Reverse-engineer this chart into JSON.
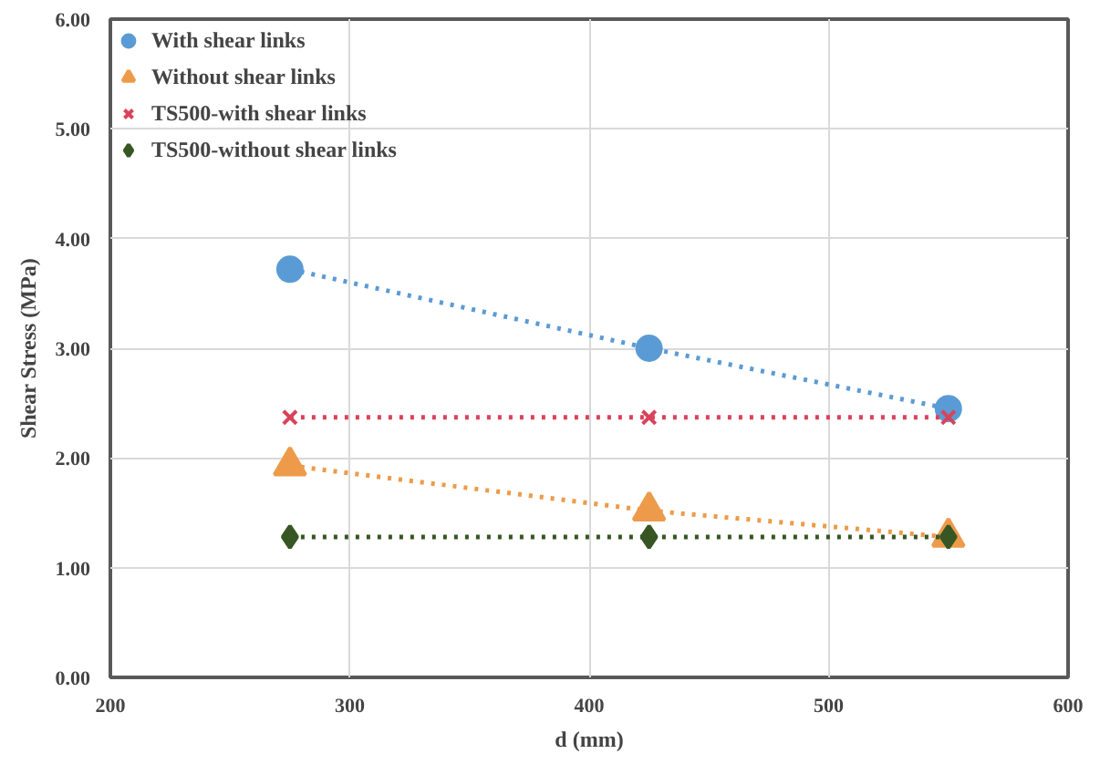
{
  "chart_data": {
    "type": "line",
    "xlabel": "d (mm)",
    "ylabel": "Shear Stress (MPa)",
    "x": [
      275,
      425,
      550
    ],
    "series": [
      {
        "name": "With shear links",
        "color": "#5b9bd5",
        "marker": "circle",
        "values": [
          3.72,
          3.0,
          2.45
        ]
      },
      {
        "name": "Without shear links",
        "color": "#ed9b4a",
        "marker": "triangle",
        "values": [
          1.93,
          1.52,
          1.28
        ]
      },
      {
        "name": "TS500-with shear links",
        "color": "#d9435a",
        "marker": "cross",
        "values": [
          2.37,
          2.37,
          2.37
        ]
      },
      {
        "name": "TS500-without shear links",
        "color": "#375623",
        "marker": "diamond",
        "values": [
          1.28,
          1.28,
          1.28
        ]
      }
    ],
    "xlim": [
      200,
      600
    ],
    "xticks": [
      200,
      300,
      400,
      500,
      600
    ],
    "ylim": [
      0,
      6
    ],
    "yticks": [
      {
        "value": 0,
        "label": "0.00"
      },
      {
        "value": 1,
        "label": "1.00"
      },
      {
        "value": 2,
        "label": "2.00"
      },
      {
        "value": 3,
        "label": "3.00"
      },
      {
        "value": 4,
        "label": "4.00"
      },
      {
        "value": 5,
        "label": "5.00"
      },
      {
        "value": 6,
        "label": "6.00"
      }
    ],
    "grid": true,
    "legend": "top left",
    "line_style": "dotted"
  }
}
